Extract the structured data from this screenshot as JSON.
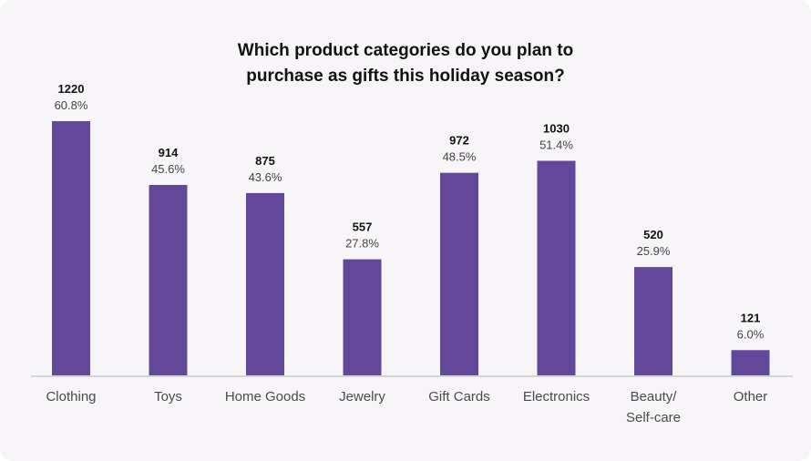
{
  "chart_data": {
    "type": "bar",
    "title_lines": [
      "Which product categories do you plan to",
      "purchase as gifts this holiday season?"
    ],
    "categories": [
      [
        "Clothing"
      ],
      [
        "Toys"
      ],
      [
        "Home Goods"
      ],
      [
        "Jewelry"
      ],
      [
        "Gift Cards"
      ],
      [
        "Electronics"
      ],
      [
        "Beauty/",
        "Self-care"
      ],
      [
        "Other"
      ]
    ],
    "values": [
      1220,
      914,
      875,
      557,
      972,
      1030,
      520,
      121
    ],
    "percent_labels": [
      "60.8%",
      "45.6%",
      "43.6%",
      "27.8%",
      "48.5%",
      "51.4%",
      "25.9%",
      "6.0%"
    ],
    "xlabel": "",
    "ylabel": "",
    "ylim": [
      0,
      1220
    ],
    "grid": false,
    "bar_color": "#62479a"
  }
}
